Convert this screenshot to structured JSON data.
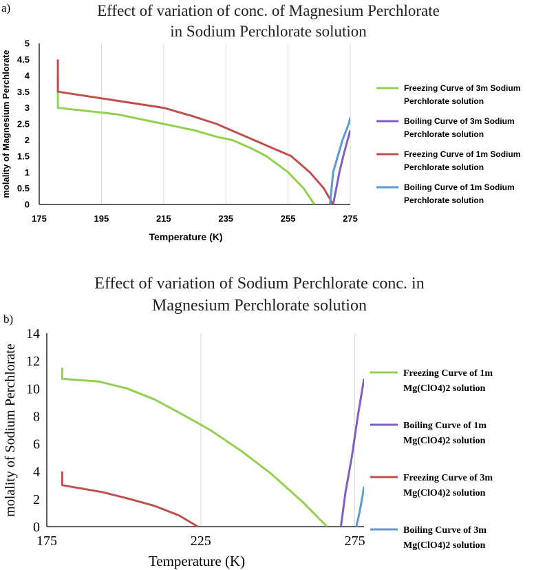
{
  "chart_data": [
    {
      "panel_label": "a)",
      "type": "line",
      "title_lines": [
        "Effect of variation of conc. of Magnesium Perchlorate",
        "in Sodium Perchlorate solution"
      ],
      "xlabel": "Temperature (K)",
      "ylabel": "molality of Magnesium Perchlorate",
      "xlim": [
        175,
        275
      ],
      "ylim": [
        0,
        5
      ],
      "xticks": [
        175,
        195,
        215,
        235,
        255,
        275
      ],
      "yticks": [
        0,
        0.5,
        1,
        1.5,
        2,
        2.5,
        3,
        3.5,
        4,
        4.5,
        5
      ],
      "grid": "vertical",
      "legend_position": "right",
      "series": [
        {
          "name": "Freezing Curve of 3m Sodium Perchlorate solution",
          "legend_lines": [
            "Freezing Curve of 3m Sodium",
            "Perchlorate solution"
          ],
          "color": "#92D050",
          "x": [
            263.5,
            260,
            255,
            248,
            243,
            237,
            232,
            225,
            215,
            200,
            181,
            181,
            181
          ],
          "y": [
            0,
            0.5,
            1,
            1.5,
            1.75,
            2,
            2.1,
            2.3,
            2.5,
            2.8,
            3,
            3.5,
            4
          ]
        },
        {
          "name": "Boiling Curve of 3m Sodium Perchlorate solution",
          "legend_lines": [
            "Boiling Curve of 3m Sodium",
            "Perchlorate solution"
          ],
          "color": "#7F5FC0",
          "x": [
            269.5,
            270.5,
            271.5,
            273,
            275
          ],
          "y": [
            0,
            0.5,
            1,
            1.6,
            2.3
          ]
        },
        {
          "name": "Freezing Curve of 1m Sodium Perchlorate solution",
          "legend_lines": [
            "Freezing Curve of 1m Sodium",
            "Perchlorate solution"
          ],
          "color": "#C0504D",
          "x": [
            269.5,
            266.5,
            262,
            256,
            250,
            244,
            238,
            232,
            224,
            215,
            198,
            181,
            181,
            181
          ],
          "y": [
            0,
            0.5,
            1,
            1.5,
            1.75,
            2,
            2.25,
            2.5,
            2.75,
            3,
            3.25,
            3.5,
            4,
            4.5
          ]
        },
        {
          "name": "Boiling Curve of 1m Sodium Perchlorate solution",
          "legend_lines": [
            "Boiling Curve of 1m Sodium",
            "Perchlorate solution"
          ],
          "color": "#5B9BD5",
          "x": [
            268.5,
            269.5,
            271,
            272.5,
            274.5,
            275
          ],
          "y": [
            0,
            1,
            1.5,
            2,
            2.5,
            2.7
          ]
        }
      ]
    },
    {
      "panel_label": "b)",
      "type": "line",
      "title_lines": [
        "Effect of variation of Sodium Perchlorate conc. in",
        "Magnesium Perchlorate solution"
      ],
      "xlabel": "Temperature (K)",
      "ylabel": "molality of Sodium Perchlorate",
      "xlim": [
        175,
        278
      ],
      "ylim": [
        0,
        14
      ],
      "xticks": [
        175,
        225,
        275
      ],
      "yticks": [
        0,
        2,
        4,
        6,
        8,
        10,
        12,
        14
      ],
      "grid": "vertical",
      "legend_position": "right",
      "series": [
        {
          "name": "Freezing Curve of 1m Mg(ClO4)2 solution",
          "legend_lines": [
            "Freezing Curve of 1m",
            "Mg(ClO4)2 solution"
          ],
          "color": "#92D050",
          "x": [
            266,
            258,
            248,
            238,
            228,
            220,
            210,
            201,
            192,
            180,
            180
          ],
          "y": [
            0,
            1.8,
            3.8,
            5.5,
            7,
            8,
            9.2,
            10,
            10.5,
            10.7,
            11.5
          ]
        },
        {
          "name": "Boiling Curve of 1m Mg(ClO4)2 solution",
          "legend_lines": [
            "Boiling Curve of 1m",
            "Mg(ClO4)2 solution"
          ],
          "color": "#7F5FC0",
          "x": [
            270.5,
            272,
            274,
            276,
            278
          ],
          "y": [
            0,
            2.5,
            5,
            8,
            10.7
          ]
        },
        {
          "name": "Freezing Curve of 3m Mg(ClO4)2 solution",
          "legend_lines": [
            "Freezing Curve of 3m",
            "Mg(ClO4)2 solution"
          ],
          "color": "#C0504D",
          "x": [
            224,
            218,
            210,
            202,
            193,
            180,
            180
          ],
          "y": [
            0,
            0.8,
            1.5,
            2.0,
            2.5,
            3,
            4
          ]
        },
        {
          "name": "Boiling Curve of 3m Mg(ClO4)2 solution",
          "legend_lines": [
            "Boiling Curve of 3m",
            "Mg(ClO4)2 solution"
          ],
          "color": "#5B9BD5",
          "x": [
            275.5,
            276.5,
            277.5,
            278
          ],
          "y": [
            0,
            1,
            2.2,
            2.9
          ]
        }
      ]
    }
  ]
}
